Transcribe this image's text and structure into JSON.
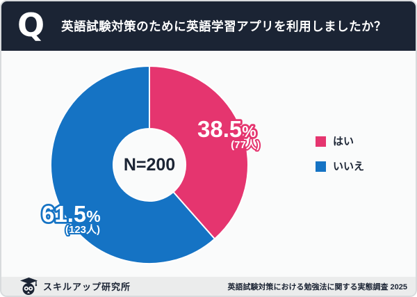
{
  "header": {
    "q_badge": "Q",
    "title": "英語試験対策のために英語学習アプリを利用しましたか？"
  },
  "chart_data": {
    "type": "pie",
    "subtype": "donut",
    "title": "英語試験対策のために英語学習アプリを利用しましたか？",
    "center_label": "N=200",
    "sample_size": 200,
    "start_angle_deg": 0,
    "direction": "clockwise",
    "legend_position": "right",
    "segments": [
      {
        "label": "はい",
        "percent": 38.5,
        "percent_label": "38.5",
        "unit": "%",
        "count": 77,
        "count_label": "(77人)",
        "color": "#E5356F"
      },
      {
        "label": "いいえ",
        "percent": 61.5,
        "percent_label": "61.5",
        "unit": "%",
        "count": 123,
        "count_label": "(123人)",
        "color": "#1573C4"
      }
    ]
  },
  "footer": {
    "brand_name": "スキルアップ研究所",
    "source_text": "英語試験対策における勉強法に関する実態調査 2025"
  },
  "colors": {
    "header_bg": "#1B2434",
    "yes_pink": "#E5356F",
    "no_blue": "#1573C4",
    "main_bg": "#FAFBFB",
    "footer_bg": "#EBECEC",
    "text_dark": "#1B2434",
    "divider_white": "#FFFFFF"
  }
}
